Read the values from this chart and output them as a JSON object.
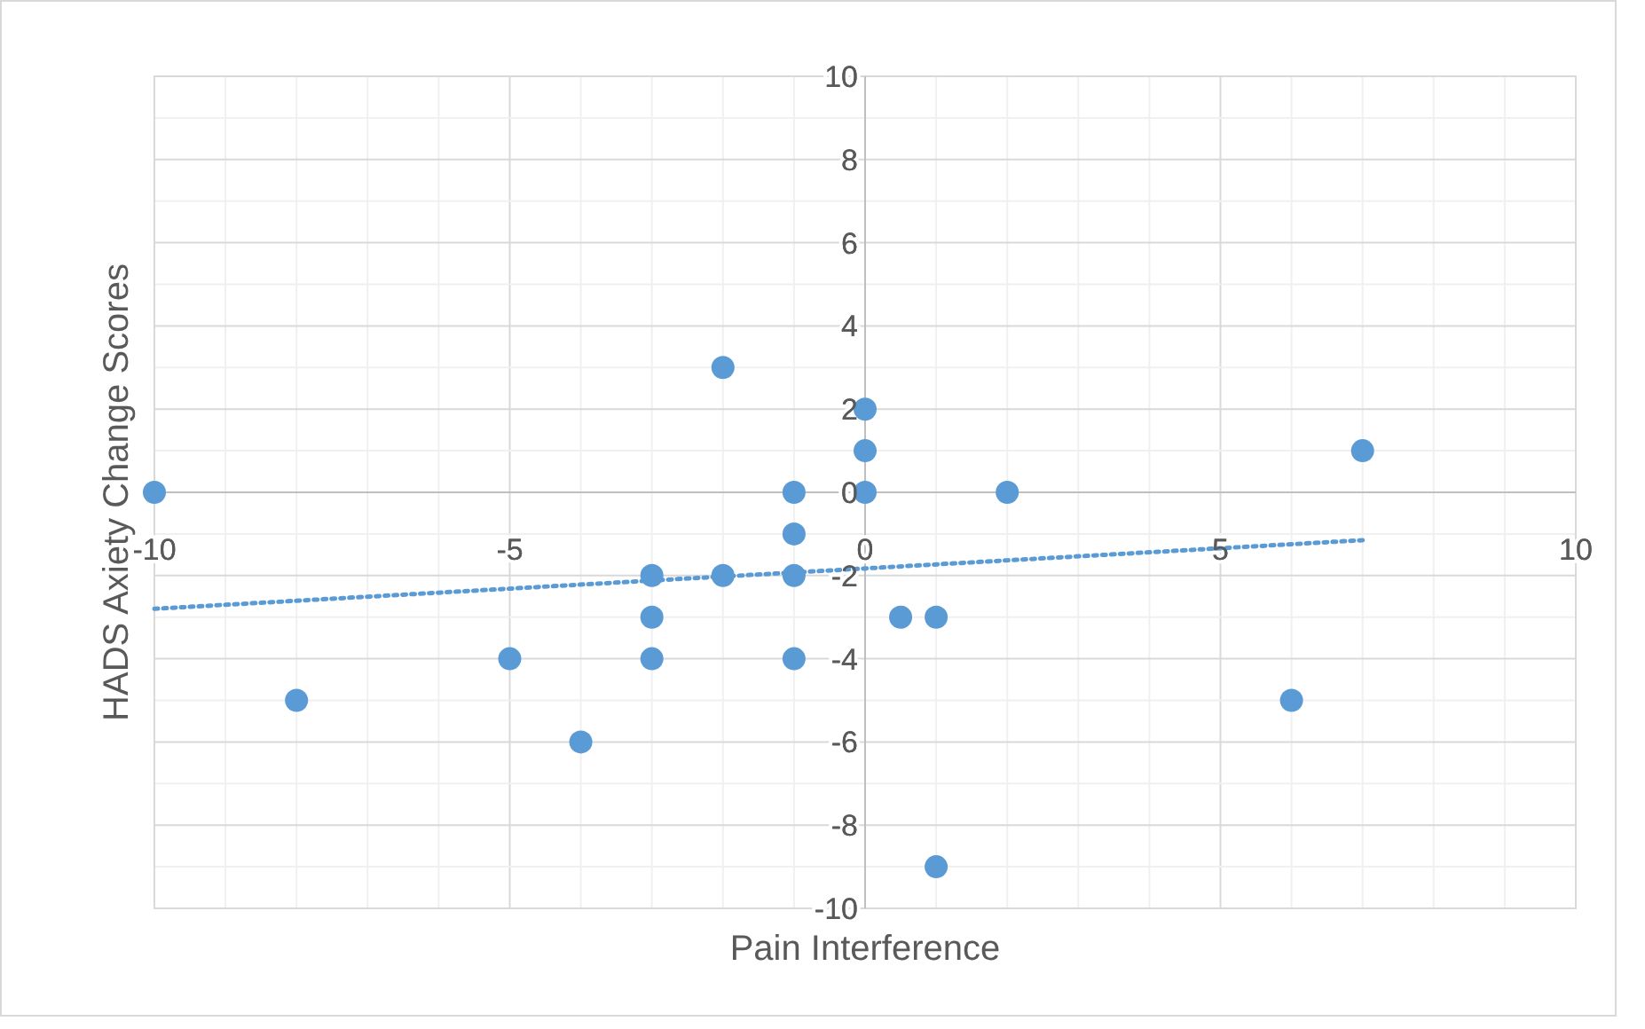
{
  "chart_data": {
    "type": "scatter",
    "xlabel": "Pain Interference",
    "ylabel": "HADS Axiety Change Scores",
    "xlim": [
      -10,
      10
    ],
    "ylim": [
      -10,
      10
    ],
    "xticks": [
      -10,
      {
        "value": -9,
        "label": null
      },
      {
        "value": -8,
        "label": null
      },
      {
        "value": -7,
        "label": null
      },
      {
        "value": -6,
        "label": null
      },
      -5,
      {
        "value": -4,
        "label": null
      },
      {
        "value": -3,
        "label": null
      },
      {
        "value": -2,
        "label": null
      },
      {
        "value": -1,
        "label": null
      },
      0,
      {
        "value": 1,
        "label": null
      },
      {
        "value": 2,
        "label": null
      },
      {
        "value": 3,
        "label": null
      },
      {
        "value": 4,
        "label": null
      },
      5,
      {
        "value": 6,
        "label": null
      },
      {
        "value": 7,
        "label": null
      },
      {
        "value": 8,
        "label": null
      },
      {
        "value": 9,
        "label": null
      },
      10
    ],
    "yticks": [
      -10,
      {
        "value": -9,
        "label": null
      },
      -8,
      {
        "value": -7,
        "label": null
      },
      -6,
      {
        "value": -5,
        "label": null
      },
      -4,
      {
        "value": -3,
        "label": null
      },
      -2,
      {
        "value": -1,
        "label": null
      },
      0,
      {
        "value": 1,
        "label": null
      },
      2,
      {
        "value": 3,
        "label": null
      },
      4,
      {
        "value": 5,
        "label": null
      },
      6,
      {
        "value": 7,
        "label": null
      },
      8,
      {
        "value": 9,
        "label": null
      },
      10
    ],
    "grid": true,
    "series": [
      {
        "color": "#5b9bd5",
        "marker": "circle",
        "x": [
          -10,
          -8,
          -5,
          -4,
          -3,
          -3,
          -3,
          -2,
          -2,
          -1,
          -1,
          -1,
          -1,
          0,
          0,
          0,
          0.5,
          1,
          1,
          2,
          6,
          7
        ],
        "values": [
          0,
          -5,
          -4,
          -6,
          -2,
          -3,
          -4,
          3,
          -2,
          0,
          -1,
          -2,
          -4,
          2,
          1,
          0,
          -3,
          -3,
          -9,
          0,
          -5,
          1
        ]
      },
      {
        "type": "line",
        "color": "#5b9bd5",
        "marker": "none",
        "line_style": "dotted",
        "x": [
          -10,
          7
        ],
        "values": [
          -2.8,
          -1.15
        ]
      }
    ]
  }
}
